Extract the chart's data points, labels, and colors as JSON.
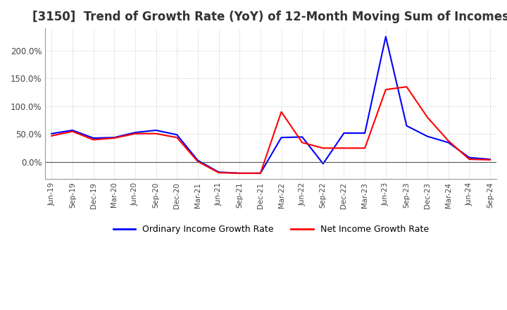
{
  "title": "[3150]  Trend of Growth Rate (YoY) of 12-Month Moving Sum of Incomes",
  "title_fontsize": 12,
  "legend_labels": [
    "Ordinary Income Growth Rate",
    "Net Income Growth Rate"
  ],
  "legend_colors": [
    "#0000ff",
    "#ff0000"
  ],
  "x_labels": [
    "Jun-19",
    "Sep-19",
    "Dec-19",
    "Mar-20",
    "Jun-20",
    "Sep-20",
    "Dec-20",
    "Mar-21",
    "Jun-21",
    "Sep-21",
    "Dec-21",
    "Mar-22",
    "Jun-22",
    "Sep-22",
    "Dec-22",
    "Mar-23",
    "Jun-23",
    "Sep-23",
    "Dec-23",
    "Mar-24",
    "Jun-24",
    "Sep-24"
  ],
  "ordinary_income": [
    51,
    57,
    43,
    44,
    53,
    57,
    49,
    3,
    -18,
    -20,
    -20,
    44,
    45,
    -3,
    52,
    52,
    225,
    65,
    46,
    35,
    8,
    5
  ],
  "net_income": [
    47,
    55,
    40,
    43,
    51,
    51,
    44,
    1,
    -19,
    -20,
    -20,
    90,
    35,
    25,
    25,
    25,
    130,
    135,
    80,
    38,
    5,
    4
  ],
  "ylim_min": -30,
  "ylim_max": 240,
  "yticks": [
    0,
    50,
    100,
    150,
    200
  ],
  "background_color": "#ffffff",
  "grid_color": "#aaaaaa",
  "plot_bg_color": "#ffffff"
}
